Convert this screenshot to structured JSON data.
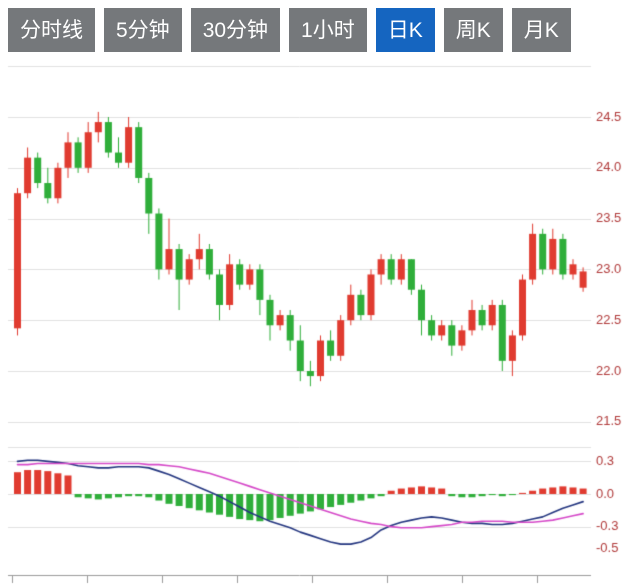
{
  "tabs": [
    {
      "label": "分时线",
      "active": false
    },
    {
      "label": "5分钟",
      "active": false
    },
    {
      "label": "30分钟",
      "active": false
    },
    {
      "label": "1小时",
      "active": false
    },
    {
      "label": "日K",
      "active": true
    },
    {
      "label": "周K",
      "active": false
    },
    {
      "label": "月K",
      "active": false
    }
  ],
  "chart_data": {
    "type": "candlestick",
    "title": "",
    "panels": [
      "price",
      "macd"
    ],
    "price_axis": {
      "tick_labels": [
        "24.5",
        "24.0",
        "23.5",
        "23.0",
        "22.5",
        "22.0",
        "21.5"
      ],
      "tick_values": [
        24.5,
        24.0,
        23.5,
        23.0,
        22.5,
        22.0,
        21.5
      ],
      "grid_values": [
        25.0,
        24.5,
        24.0,
        23.5,
        23.0,
        22.5,
        22.0,
        21.5
      ],
      "range": [
        21.3,
        25.0
      ]
    },
    "candles": [
      [
        22.42,
        23.8,
        22.35,
        23.75
      ],
      [
        23.75,
        24.2,
        23.7,
        24.1
      ],
      [
        24.1,
        24.15,
        23.8,
        23.85
      ],
      [
        23.85,
        24.0,
        23.65,
        23.7
      ],
      [
        23.7,
        24.05,
        23.65,
        24.0
      ],
      [
        24.0,
        24.35,
        23.9,
        24.25
      ],
      [
        24.25,
        24.3,
        23.95,
        24.0
      ],
      [
        24.0,
        24.45,
        23.95,
        24.35
      ],
      [
        24.35,
        24.55,
        24.25,
        24.45
      ],
      [
        24.45,
        24.5,
        24.1,
        24.15
      ],
      [
        24.15,
        24.3,
        24.0,
        24.05
      ],
      [
        24.05,
        24.5,
        24.0,
        24.4
      ],
      [
        24.4,
        24.45,
        23.85,
        23.9
      ],
      [
        23.9,
        23.95,
        23.35,
        23.55
      ],
      [
        23.55,
        23.6,
        22.9,
        23.0
      ],
      [
        23.0,
        23.5,
        22.95,
        23.2
      ],
      [
        23.2,
        23.25,
        22.6,
        22.9
      ],
      [
        22.9,
        23.15,
        22.85,
        23.1
      ],
      [
        23.1,
        23.35,
        23.0,
        23.2
      ],
      [
        23.2,
        23.25,
        22.9,
        22.95
      ],
      [
        22.95,
        23.0,
        22.5,
        22.65
      ],
      [
        22.65,
        23.15,
        22.6,
        23.05
      ],
      [
        23.05,
        23.1,
        22.8,
        22.85
      ],
      [
        22.85,
        23.05,
        22.8,
        23.0
      ],
      [
        23.0,
        23.05,
        22.55,
        22.7
      ],
      [
        22.7,
        22.75,
        22.3,
        22.45
      ],
      [
        22.45,
        22.6,
        22.4,
        22.55
      ],
      [
        22.55,
        22.6,
        22.2,
        22.3
      ],
      [
        22.3,
        22.45,
        21.9,
        22.0
      ],
      [
        22.0,
        22.1,
        21.85,
        21.95
      ],
      [
        21.95,
        22.35,
        21.9,
        22.3
      ],
      [
        22.3,
        22.4,
        22.1,
        22.15
      ],
      [
        22.15,
        22.55,
        22.1,
        22.5
      ],
      [
        22.5,
        22.85,
        22.45,
        22.75
      ],
      [
        22.75,
        22.8,
        22.5,
        22.55
      ],
      [
        22.55,
        23.0,
        22.5,
        22.95
      ],
      [
        22.95,
        23.15,
        22.85,
        23.1
      ],
      [
        23.1,
        23.15,
        22.85,
        22.9
      ],
      [
        22.9,
        23.15,
        22.85,
        23.1
      ],
      [
        23.1,
        23.1,
        22.75,
        22.8
      ],
      [
        22.8,
        22.85,
        22.35,
        22.5
      ],
      [
        22.5,
        22.55,
        22.3,
        22.35
      ],
      [
        22.35,
        22.5,
        22.3,
        22.45
      ],
      [
        22.45,
        22.5,
        22.15,
        22.25
      ],
      [
        22.25,
        22.45,
        22.2,
        22.4
      ],
      [
        22.4,
        22.7,
        22.35,
        22.6
      ],
      [
        22.6,
        22.65,
        22.4,
        22.45
      ],
      [
        22.45,
        22.7,
        22.4,
        22.65
      ],
      [
        22.65,
        22.7,
        22.0,
        22.1
      ],
      [
        22.1,
        22.4,
        21.95,
        22.35
      ],
      [
        22.35,
        22.95,
        22.3,
        22.9
      ],
      [
        22.9,
        23.45,
        22.85,
        23.35
      ],
      [
        23.35,
        23.4,
        22.95,
        23.0
      ],
      [
        23.0,
        23.4,
        22.95,
        23.3
      ],
      [
        23.3,
        23.35,
        22.9,
        22.95
      ],
      [
        22.95,
        23.1,
        22.9,
        23.05
      ],
      [
        22.82,
        23.02,
        22.78,
        22.98
      ]
    ],
    "macd": {
      "tick_labels": [
        "0.3",
        "0.0",
        "-0.3",
        "-0.5"
      ],
      "tick_values": [
        0.3,
        0.0,
        -0.3,
        -0.5
      ],
      "grid_values": [
        0.3,
        0.0,
        -0.3
      ],
      "range": [
        -0.55,
        0.38
      ],
      "dif": [
        0.3,
        0.31,
        0.31,
        0.3,
        0.29,
        0.28,
        0.26,
        0.25,
        0.24,
        0.24,
        0.25,
        0.25,
        0.25,
        0.24,
        0.21,
        0.18,
        0.14,
        0.1,
        0.06,
        0.02,
        -0.02,
        -0.07,
        -0.12,
        -0.17,
        -0.21,
        -0.25,
        -0.28,
        -0.31,
        -0.35,
        -0.38,
        -0.41,
        -0.44,
        -0.46,
        -0.46,
        -0.44,
        -0.4,
        -0.33,
        -0.29,
        -0.26,
        -0.24,
        -0.22,
        -0.21,
        -0.22,
        -0.24,
        -0.26,
        -0.27,
        -0.27,
        -0.28,
        -0.28,
        -0.27,
        -0.25,
        -0.23,
        -0.21,
        -0.17,
        -0.13,
        -0.1,
        -0.07
      ],
      "dea": [
        0.27,
        0.27,
        0.28,
        0.28,
        0.28,
        0.28,
        0.28,
        0.28,
        0.28,
        0.28,
        0.28,
        0.28,
        0.28,
        0.27,
        0.27,
        0.26,
        0.25,
        0.23,
        0.21,
        0.19,
        0.16,
        0.13,
        0.1,
        0.07,
        0.04,
        0.01,
        -0.02,
        -0.05,
        -0.08,
        -0.11,
        -0.14,
        -0.17,
        -0.2,
        -0.23,
        -0.25,
        -0.27,
        -0.28,
        -0.3,
        -0.31,
        -0.31,
        -0.31,
        -0.3,
        -0.29,
        -0.28,
        -0.26,
        -0.26,
        -0.25,
        -0.25,
        -0.25,
        -0.26,
        -0.26,
        -0.26,
        -0.25,
        -0.24,
        -0.22,
        -0.2,
        -0.18
      ],
      "hist": [
        0.2,
        0.22,
        0.22,
        0.21,
        0.19,
        0.17,
        -0.03,
        -0.04,
        -0.05,
        -0.04,
        -0.03,
        -0.02,
        -0.02,
        -0.03,
        -0.06,
        -0.09,
        -0.11,
        -0.13,
        -0.15,
        -0.17,
        -0.19,
        -0.21,
        -0.23,
        -0.24,
        -0.25,
        -0.24,
        -0.22,
        -0.2,
        -0.18,
        -0.16,
        -0.14,
        -0.12,
        -0.1,
        -0.08,
        -0.06,
        -0.04,
        -0.02,
        0.03,
        0.05,
        0.06,
        0.07,
        0.06,
        0.05,
        -0.02,
        -0.03,
        -0.03,
        -0.02,
        -0.01,
        -0.02,
        -0.01,
        0.01,
        0.03,
        0.05,
        0.06,
        0.07,
        0.06,
        0.05
      ]
    },
    "colors": {
      "up": "#e03b30",
      "down": "#2fae3a",
      "dif_line": "#23357f",
      "dea_line": "#d548c8",
      "grid": "#e0e0e0",
      "axis_line": "#9a9a9a",
      "axis_label": "#b03a3a",
      "tab_inactive_bg": "#75787b",
      "tab_active_bg": "#1565c0",
      "tab_text": "#ffffff"
    }
  }
}
